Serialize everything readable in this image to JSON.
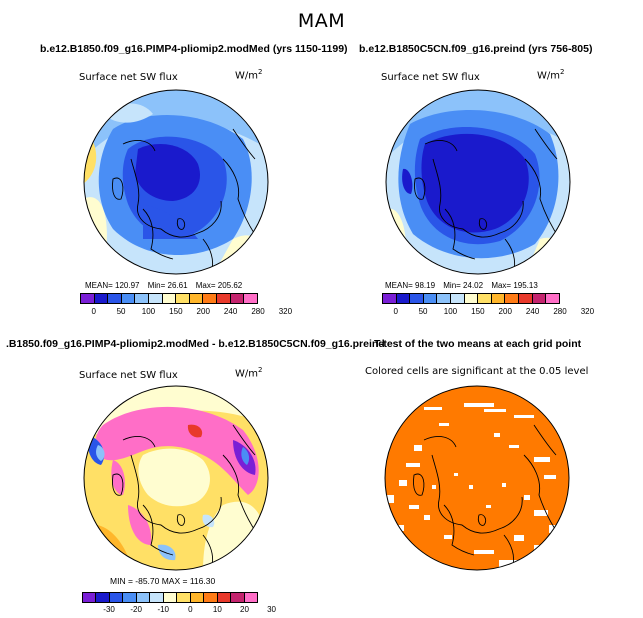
{
  "season": "MAM",
  "panels": {
    "top_left": {
      "title": "b.e12.B1850.f09_g16.PIMP4-pliomip2.modMed (yrs 1150-1199)",
      "variable": "Surface net SW flux",
      "units_base": "W/m",
      "units_exp": "2",
      "stats": {
        "mean": "MEAN= 120.97",
        "min": "Min= 26.61",
        "max": "Max= 205.62"
      },
      "colorbar_ticks": [
        "0",
        "50",
        "100",
        "150",
        "200",
        "240",
        "280",
        "320"
      ]
    },
    "top_right": {
      "title": "b.e12.B1850C5CN.f09_g16.preind (yrs 756-805)",
      "variable": "Surface net SW flux",
      "units_base": "W/m",
      "units_exp": "2",
      "stats": {
        "mean": "MEAN= 98.19",
        "min": "Min= 24.02",
        "max": "Max= 195.13"
      },
      "colorbar_ticks": [
        "0",
        "50",
        "100",
        "150",
        "200",
        "240",
        "280",
        "320"
      ]
    },
    "bottom_left": {
      "title": ".B1850.f09_g16.PIMP4-pliomip2.modMed - b.e12.B1850C5CN.f09_g16.preind",
      "variable": "Surface net SW flux",
      "units_base": "W/m",
      "units_exp": "2",
      "stats_line": "MIN = -85.70 MAX = 116.30",
      "colorbar_ticks": [
        "-30",
        "-20",
        "-10",
        "0",
        "10",
        "20",
        "30"
      ]
    },
    "bottom_right": {
      "title": "T-test of the two means at each grid point",
      "caption": "Colored cells are significant at the 0.05 level"
    }
  },
  "colors": {
    "abs_scale": [
      "#7a1fd6",
      "#1a1acc",
      "#2a55e8",
      "#4a8ef5",
      "#8cc2fa",
      "#c6e4fb",
      "#fffdd0",
      "#ffe066",
      "#ffb62b",
      "#ff7b16",
      "#e8392b",
      "#c4246e",
      "#ff6ec7"
    ],
    "diff_scale": [
      "#7a1fd6",
      "#1a1acc",
      "#2a55e8",
      "#4a8ef5",
      "#8cc2fa",
      "#c6e4fb",
      "#fffdd0",
      "#ffe066",
      "#ffb62b",
      "#ff7b16",
      "#e8392b",
      "#c4246e",
      "#ff6ec7"
    ],
    "significance": "#ff7a00"
  }
}
